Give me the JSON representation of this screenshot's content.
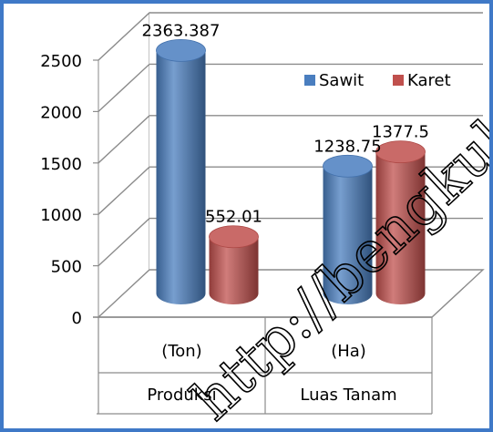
{
  "chart_data": {
    "type": "bar",
    "style": "3d-cylinder",
    "groups": [
      {
        "category": "(Ton)",
        "parent": "Produksi"
      },
      {
        "category": "(Ha)",
        "parent": "Luas Tanam"
      }
    ],
    "parent_categories": [
      "Produksi",
      "Luas Tanam"
    ],
    "series": [
      {
        "name": "Sawit",
        "color": "#4a7ebf",
        "values": [
          2363.387,
          1238.75
        ],
        "labels": [
          "2363.387",
          "1238.75"
        ]
      },
      {
        "name": "Karet",
        "color": "#c0504d",
        "values": [
          552.01,
          1377.5
        ],
        "labels": [
          "552.01",
          "1377.5"
        ]
      }
    ],
    "yticks": [
      "0",
      "500",
      "1000",
      "1500",
      "2000",
      "2500"
    ],
    "ylim": [
      0,
      2500
    ],
    "grid": true,
    "legend": "top-right"
  },
  "watermark": "http://bengkulu"
}
